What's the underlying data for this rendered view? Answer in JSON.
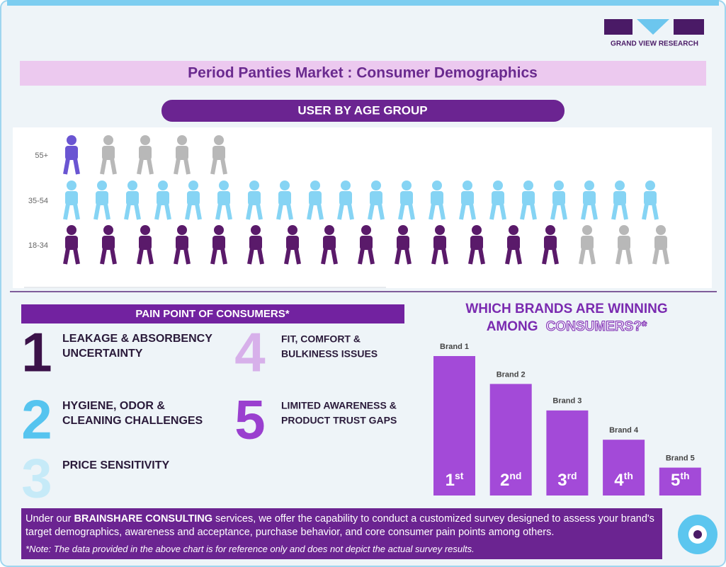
{
  "logo": {
    "text": "GRAND VIEW RESEARCH"
  },
  "title": "Period Panties Market : Consumer Demographics",
  "age_section": {
    "title": "USER BY AGE GROUP",
    "inactive_color": "#b8b8b8",
    "groups": [
      {
        "label": "55+",
        "highlighted": 1,
        "total": 5,
        "color": "#6a55d2"
      },
      {
        "label": "35-54",
        "highlighted": 20,
        "total": 20,
        "color": "#86d4f4"
      },
      {
        "label": "18-34",
        "highlighted": 14,
        "total": 17,
        "color": "#5a1a6a"
      }
    ]
  },
  "pain_points": {
    "title": "PAIN POINT OF CONSUMERS*",
    "items": [
      {
        "num": "1",
        "lines": [
          "LEAKAGE & ABSORBENCY",
          "UNCERTAINTY"
        ],
        "color": "#3b1249"
      },
      {
        "num": "2",
        "lines": [
          "HYGIENE, ODOR &",
          "CLEANING CHALLENGES"
        ],
        "color": "#56c4ef"
      },
      {
        "num": "3",
        "lines": [
          "PRICE SENSITIVITY"
        ],
        "color": "#c6eaf8"
      },
      {
        "num": "4",
        "lines": [
          "FIT, COMFORT &",
          "BULKINESS ISSUES"
        ],
        "color": "#d7b0ea"
      },
      {
        "num": "5",
        "lines": [
          "LIMITED AWARENESS &",
          "PRODUCT TRUST GAPS"
        ],
        "color": "#9a3fcf"
      }
    ]
  },
  "brands": {
    "title_line1": "WHICH BRANDS ARE WINNING",
    "title_line2_a": "AMONG",
    "title_line2_b": "CONSUMERS?*",
    "color": "#a34ad8",
    "items": [
      {
        "name": "Brand 1",
        "rank": "1",
        "suffix": "st",
        "value": 100
      },
      {
        "name": "Brand 2",
        "rank": "2",
        "suffix": "nd",
        "value": 80
      },
      {
        "name": "Brand 3",
        "rank": "3",
        "suffix": "rd",
        "value": 61
      },
      {
        "name": "Brand 4",
        "rank": "4",
        "suffix": "th",
        "value": 40
      },
      {
        "name": "Brand 5",
        "rank": "5",
        "suffix": "th",
        "value": 20
      }
    ]
  },
  "footer": {
    "text_before": "Under our ",
    "highlight": "BRAINSHARE CONSULTING",
    "text_after": " services, we offer the capability to conduct a customized survey designed to assess your brand's target demographics, awareness and acceptance, purchase behavior, and core consumer pain points among others.",
    "note": "*Note: The data provided in the above chart is for reference only and does not depict the actual survey results."
  }
}
